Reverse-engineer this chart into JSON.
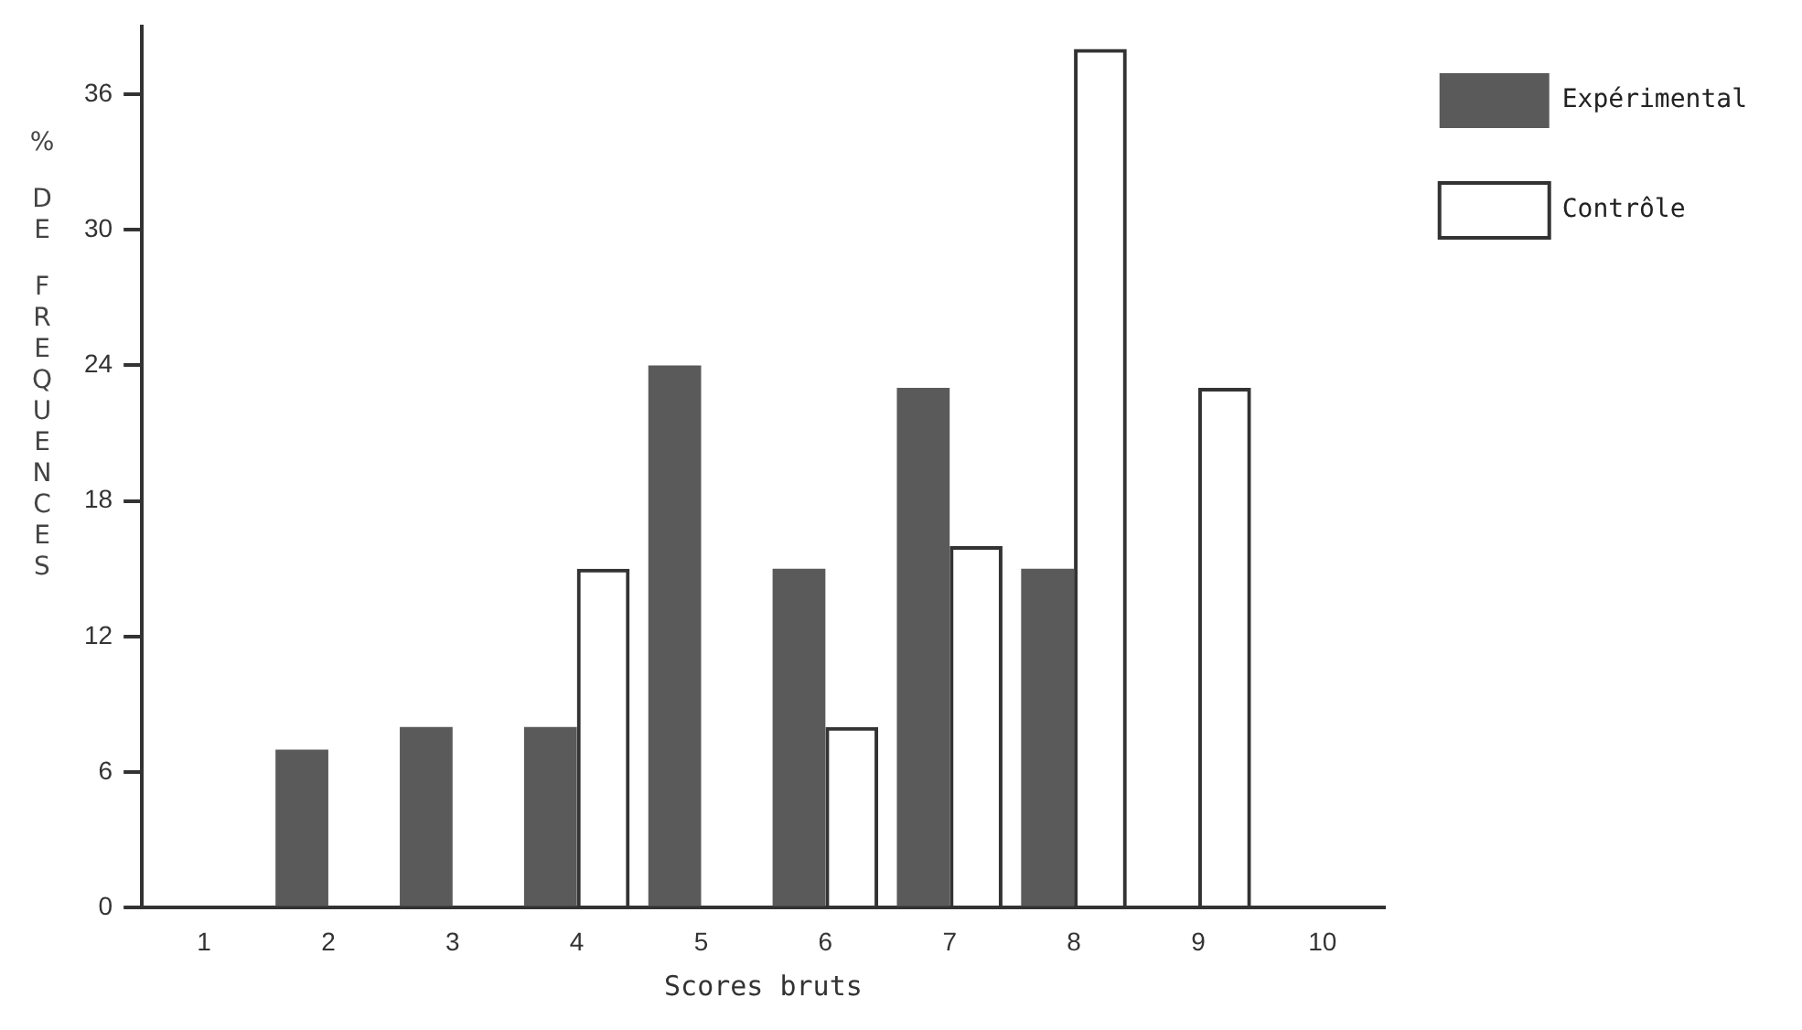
{
  "chart_data": {
    "type": "bar",
    "xlabel": "Scores bruts",
    "ylabel": "% DE FREQUENCES",
    "categories": [
      "1",
      "2",
      "3",
      "4",
      "5",
      "6",
      "7",
      "8",
      "9",
      "10"
    ],
    "series": [
      {
        "name": "Expérimental",
        "color": "#5a5a5a",
        "values": [
          0,
          7,
          8,
          8,
          24,
          15,
          23,
          15,
          0,
          0
        ]
      },
      {
        "name": "Contrôle",
        "color": "#333333",
        "values": [
          0,
          0,
          0,
          15,
          0,
          8,
          16,
          38,
          23,
          0
        ]
      }
    ],
    "ylim": [
      0,
      39
    ],
    "yticks": [
      0,
      6,
      12,
      18,
      24,
      30,
      36
    ],
    "grid": false,
    "legend": "top right"
  }
}
